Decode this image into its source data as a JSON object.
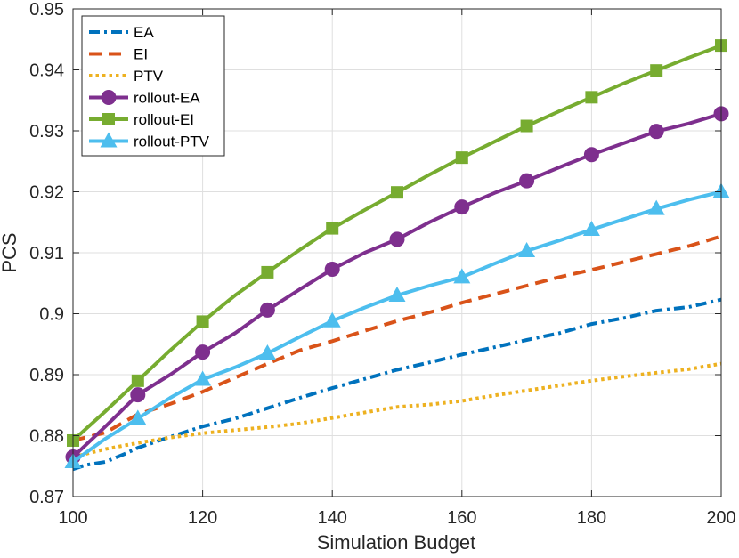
{
  "chart_data": {
    "type": "line",
    "title": "",
    "xlabel": "Simulation Budget",
    "ylabel": "PCS",
    "xlim": [
      100,
      200
    ],
    "ylim": [
      0.87,
      0.95
    ],
    "xticks": [
      100,
      120,
      140,
      160,
      180,
      200
    ],
    "xtick_labels": [
      "100",
      "120",
      "140",
      "160",
      "180",
      "200"
    ],
    "yticks": [
      0.87,
      0.88,
      0.89,
      0.9,
      0.91,
      0.92,
      0.93,
      0.94,
      0.95
    ],
    "ytick_labels": [
      "0.87",
      "0.88",
      "0.89",
      "0.9",
      "0.91",
      "0.92",
      "0.93",
      "0.94",
      "0.95"
    ],
    "grid": true,
    "legend_position": "top-left",
    "series": [
      {
        "name": "EA",
        "color": "#0072BD",
        "dash": "dashdot",
        "marker": "none",
        "x": [
          100,
          102,
          105,
          108,
          110,
          115,
          120,
          125,
          130,
          135,
          140,
          145,
          150,
          155,
          160,
          165,
          170,
          175,
          180,
          185,
          190,
          195,
          200
        ],
        "y": [
          0.8745,
          0.8752,
          0.8757,
          0.877,
          0.878,
          0.8798,
          0.8815,
          0.8828,
          0.8845,
          0.8862,
          0.8878,
          0.8893,
          0.8908,
          0.892,
          0.8933,
          0.8945,
          0.8957,
          0.8968,
          0.8983,
          0.8993,
          0.9005,
          0.9011,
          0.9023
        ]
      },
      {
        "name": "EI",
        "color": "#D95319",
        "dash": "dash",
        "marker": "none",
        "x": [
          100,
          105,
          110,
          115,
          120,
          125,
          130,
          135,
          140,
          145,
          150,
          155,
          160,
          165,
          170,
          175,
          180,
          185,
          190,
          195,
          200
        ],
        "y": [
          0.8792,
          0.8805,
          0.8835,
          0.8852,
          0.8872,
          0.8895,
          0.8918,
          0.894,
          0.8955,
          0.8972,
          0.8988,
          0.9002,
          0.9018,
          0.9032,
          0.9046,
          0.906,
          0.9072,
          0.9085,
          0.9098,
          0.9111,
          0.9127
        ]
      },
      {
        "name": "PTV",
        "color": "#EDB120",
        "dash": "dot",
        "marker": "none",
        "x": [
          100,
          105,
          110,
          115,
          120,
          125,
          130,
          135,
          140,
          145,
          150,
          155,
          160,
          165,
          170,
          175,
          180,
          185,
          190,
          195,
          200
        ],
        "y": [
          0.8765,
          0.8778,
          0.8788,
          0.8797,
          0.8804,
          0.8809,
          0.8814,
          0.882,
          0.8829,
          0.8838,
          0.8847,
          0.8851,
          0.8857,
          0.8866,
          0.8874,
          0.8882,
          0.889,
          0.8897,
          0.8903,
          0.8909,
          0.8918
        ]
      },
      {
        "name": "rollout-EA",
        "color": "#7E2F8E",
        "dash": "solid",
        "marker": "circle",
        "x": [
          100,
          105,
          110,
          115,
          120,
          125,
          130,
          135,
          140,
          145,
          150,
          155,
          160,
          165,
          170,
          175,
          180,
          185,
          190,
          195,
          200
        ],
        "y": [
          0.8765,
          0.8815,
          0.8867,
          0.89,
          0.8937,
          0.8968,
          0.9006,
          0.904,
          0.9073,
          0.91,
          0.9122,
          0.915,
          0.9175,
          0.9198,
          0.9218,
          0.924,
          0.9261,
          0.928,
          0.9299,
          0.9312,
          0.9328
        ]
      },
      {
        "name": "rollout-EI",
        "color": "#77AC30",
        "dash": "solid",
        "marker": "square",
        "x": [
          100,
          105,
          110,
          115,
          120,
          125,
          130,
          135,
          140,
          145,
          150,
          155,
          160,
          165,
          170,
          175,
          180,
          185,
          190,
          195,
          200
        ],
        "y": [
          0.8792,
          0.884,
          0.889,
          0.894,
          0.8987,
          0.903,
          0.9068,
          0.9105,
          0.914,
          0.917,
          0.9199,
          0.9228,
          0.9256,
          0.9282,
          0.9308,
          0.9332,
          0.9355,
          0.9378,
          0.9399,
          0.942,
          0.944
        ]
      },
      {
        "name": "rollout-PTV",
        "color": "#4DBEEE",
        "dash": "solid",
        "marker": "triangle",
        "x": [
          100,
          105,
          110,
          115,
          120,
          125,
          130,
          135,
          140,
          145,
          150,
          155,
          160,
          165,
          170,
          175,
          180,
          185,
          190,
          195,
          200
        ],
        "y": [
          0.8757,
          0.8795,
          0.8828,
          0.8862,
          0.8892,
          0.8912,
          0.8935,
          0.8962,
          0.8988,
          0.901,
          0.903,
          0.9046,
          0.906,
          0.9082,
          0.9103,
          0.912,
          0.9138,
          0.9155,
          0.9172,
          0.9187,
          0.92
        ]
      }
    ],
    "marker_x": [
      100,
      110,
      120,
      130,
      140,
      150,
      160,
      170,
      180,
      190,
      200
    ]
  }
}
